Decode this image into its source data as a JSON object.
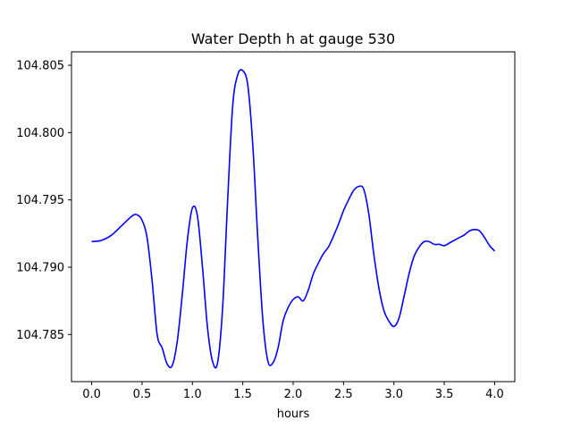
{
  "chart_data": {
    "type": "line",
    "title": "Water Depth h at gauge 530",
    "xlabel": "hours",
    "ylabel": "",
    "xlim": [
      -0.2,
      4.2
    ],
    "ylim": [
      104.7815,
      104.806
    ],
    "xticks": [
      0.0,
      0.5,
      1.0,
      1.5,
      2.0,
      2.5,
      3.0,
      3.5,
      4.0
    ],
    "xtick_labels": [
      "0.0",
      "0.5",
      "1.0",
      "1.5",
      "2.0",
      "2.5",
      "3.0",
      "3.5",
      "4.0"
    ],
    "yticks": [
      104.785,
      104.79,
      104.795,
      104.8,
      104.805
    ],
    "ytick_labels": [
      "104.785",
      "104.790",
      "104.795",
      "104.800",
      "104.805"
    ],
    "grid": false,
    "series": [
      {
        "color": "#0000ff",
        "x": [
          0.0,
          0.1,
          0.2,
          0.3,
          0.4,
          0.45,
          0.5,
          0.55,
          0.6,
          0.65,
          0.7,
          0.75,
          0.8,
          0.85,
          0.9,
          0.95,
          1.0,
          1.05,
          1.1,
          1.15,
          1.2,
          1.25,
          1.3,
          1.35,
          1.4,
          1.45,
          1.5,
          1.55,
          1.6,
          1.65,
          1.7,
          1.75,
          1.8,
          1.85,
          1.9,
          1.95,
          2.0,
          2.05,
          2.1,
          2.15,
          2.2,
          2.25,
          2.3,
          2.35,
          2.4,
          2.45,
          2.5,
          2.55,
          2.6,
          2.65,
          2.7,
          2.75,
          2.8,
          2.85,
          2.9,
          2.95,
          3.0,
          3.05,
          3.1,
          3.15,
          3.2,
          3.25,
          3.3,
          3.35,
          3.4,
          3.45,
          3.5,
          3.55,
          3.6,
          3.65,
          3.7,
          3.75,
          3.8,
          3.85,
          3.9,
          3.95,
          4.0
        ],
        "y": [
          104.7919,
          104.792,
          104.7924,
          104.7931,
          104.7938,
          104.7939,
          104.7935,
          104.7922,
          104.789,
          104.785,
          104.784,
          104.7828,
          104.7827,
          104.7845,
          104.788,
          104.792,
          104.7944,
          104.7938,
          104.79,
          104.7855,
          104.783,
          104.7829,
          104.787,
          104.795,
          104.802,
          104.8043,
          104.8046,
          104.8035,
          104.799,
          104.792,
          104.786,
          104.783,
          104.7829,
          104.784,
          104.786,
          104.787,
          104.7876,
          104.7878,
          104.7875,
          104.7883,
          104.7895,
          104.7903,
          104.791,
          104.7915,
          104.7923,
          104.7932,
          104.7942,
          104.795,
          104.7957,
          104.796,
          104.7958,
          104.794,
          104.791,
          104.7885,
          104.7868,
          104.786,
          104.7856,
          104.7862,
          104.7878,
          104.7895,
          104.7908,
          104.7915,
          104.7919,
          104.7919,
          104.7917,
          104.7917,
          104.7916,
          104.7918,
          104.792,
          104.7922,
          104.7924,
          104.7927,
          104.7928,
          104.7927,
          104.7922,
          104.7916,
          104.7912
        ]
      }
    ]
  }
}
